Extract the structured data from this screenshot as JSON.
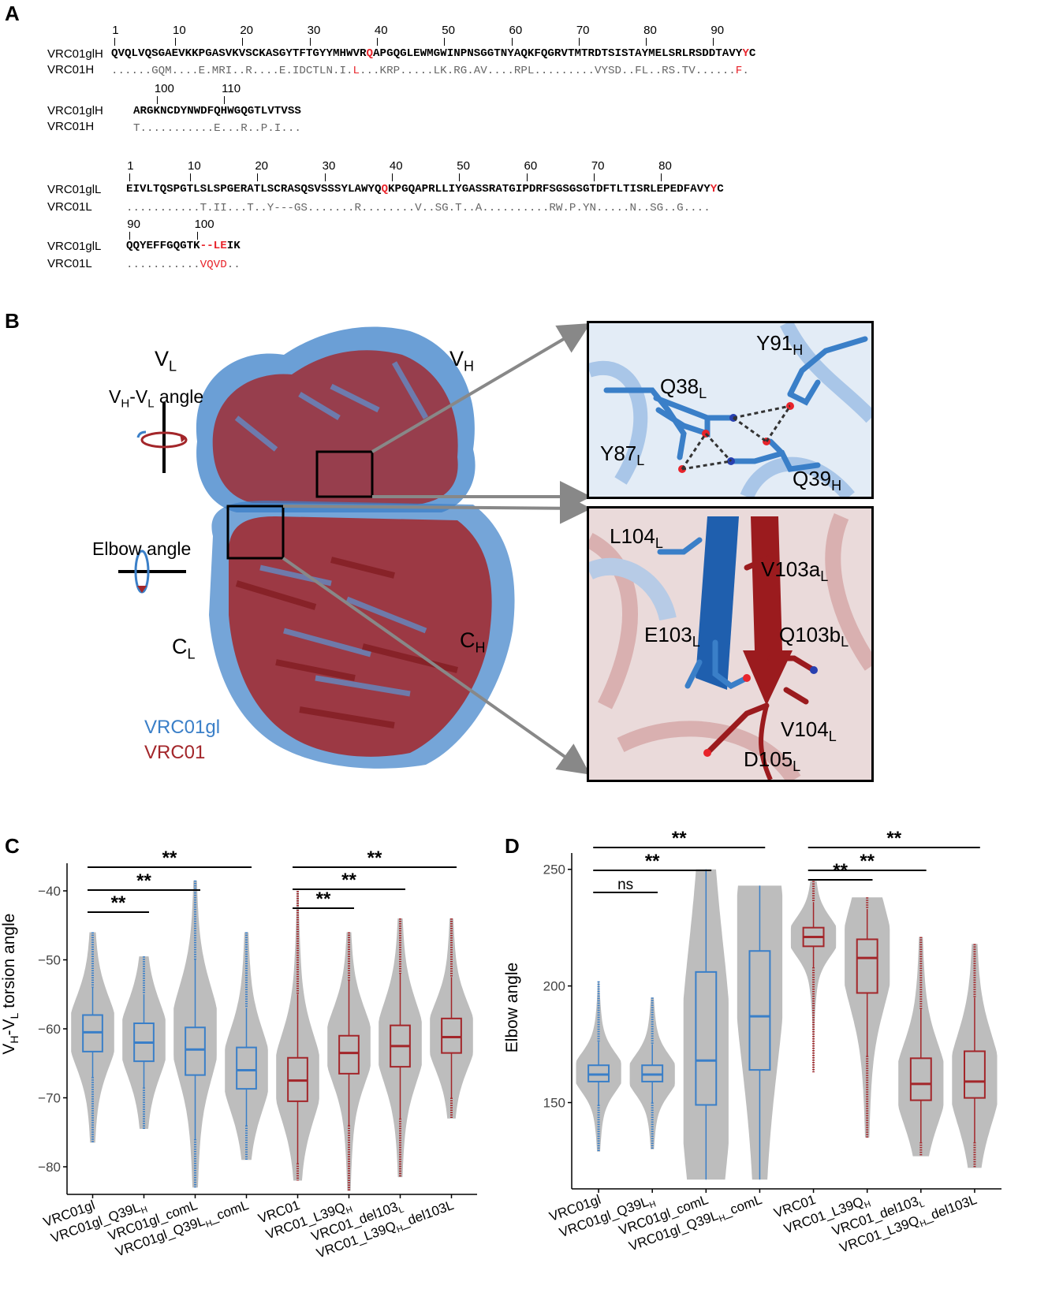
{
  "panel_a": {
    "letter": "A",
    "block1": {
      "ticks": [
        "1",
        "10",
        "20",
        "30",
        "40",
        "50",
        "60",
        "70",
        "80",
        "90"
      ],
      "row1_name": "VRC01glH",
      "row1_seq_pre": "QVQLVQSGAEVKKPGASVKVSCKASGYTFTGYYMHWVR",
      "row1_seq_red1": "Q",
      "row1_seq_mid": "APGQGLEWMGWINPNSGGTNYAQKFQGRVTMTRDTSISTAYMELSRLRSDDTAVY",
      "row1_seq_red2": "Y",
      "row1_seq_end": "C",
      "row2_name": "VRC01H",
      "row2_seq_pre": "......GQM....E.MRI..R....E.IDCTLN.I.",
      "row2_seq_red1": "L",
      "row2_seq_mid": "...KRP.....LK.RG.AV....RPL.........VYSD..FL..RS.TV......",
      "row2_seq_red2": "F",
      "row2_seq_end": "."
    },
    "block2": {
      "ticks": [
        "100",
        "110"
      ],
      "row1_name": "VRC01glH",
      "row1_seq": "ARGKNCDYNWDFQHWGQGTLVTVSS",
      "row2_name": "VRC01H",
      "row2_seq": "T...........E...R..P.I..."
    },
    "block3": {
      "ticks": [
        "1",
        "10",
        "20",
        "30",
        "40",
        "50",
        "60",
        "70",
        "80"
      ],
      "row1_name": "VRC01glL",
      "row1_seq_pre": "EIVLTQSPGTLSLSPGERATLSCRASQSVSSSYLAWYQ",
      "row1_seq_red1": "Q",
      "row1_seq_mid": "KPGQAPRLLIYGASSRATGIPDRFSGSGSGTDFTLTISRLEPEDFAVY",
      "row1_seq_red2": "Y",
      "row1_seq_end": "C",
      "row2_name": "VRC01L",
      "row2_seq": "...........T.II...T..Y---GS.......R........V..SG.T..A..........RW.P.YN.....N..SG..G...."
    },
    "block4": {
      "ticks": [
        "90",
        "100"
      ],
      "row1_name": "VRC01glL",
      "row1_seq_pre": "QQYEFFGQGTK",
      "row1_seq_red": "--LE",
      "row1_seq_end": "IK",
      "row2_name": "VRC01L",
      "row2_seq_pre": "...........",
      "row2_seq_red": "VQVD",
      "row2_seq_end": ".."
    }
  },
  "panel_b": {
    "letter": "B",
    "labels": {
      "vl": "V",
      "vl_sub": "L",
      "vh": "V",
      "vh_sub": "H",
      "angle_title_v1": "V",
      "angle_title_sub1": "H",
      "angle_title_dash": "-V",
      "angle_title_sub2": "L",
      "angle_title_rest": " angle",
      "elbow": "Elbow angle",
      "cl": "C",
      "cl_sub": "L",
      "ch": "C",
      "ch_sub": "H",
      "legend_gl": "VRC01gl",
      "legend_mature": "VRC01"
    },
    "zoom_top": {
      "residues": [
        {
          "name": "Y91",
          "sub": "H"
        },
        {
          "name": "Q38",
          "sub": "L"
        },
        {
          "name": "Y87",
          "sub": "L"
        },
        {
          "name": "Q39",
          "sub": "H"
        }
      ]
    },
    "zoom_bottom": {
      "residues": [
        {
          "name": "L104",
          "sub": "L",
          "color": "#1f5fae"
        },
        {
          "name": "V103a",
          "sub": "L",
          "color": "#9b1b1e"
        },
        {
          "name": "E103",
          "sub": "L",
          "color": "#1f5fae"
        },
        {
          "name": "Q103b",
          "sub": "L",
          "color": "#9b1b1e"
        },
        {
          "name": "V104",
          "sub": "L",
          "color": "#9b1b1e"
        },
        {
          "name": "D105",
          "sub": "L",
          "color": "#9b1b1e"
        }
      ]
    },
    "colors": {
      "gl": "#3a7fc8",
      "mature": "#a3262a"
    }
  },
  "panel_c": {
    "letter": "C",
    "ylabel_main": "V",
    "ylabel_sub1": "H",
    "ylabel_dash": "-V",
    "ylabel_sub2": "L",
    "ylabel_rest": " torsion angle",
    "yticks": [
      "-40",
      "-50",
      "-60",
      "-70",
      "-80"
    ],
    "categories": [
      {
        "main": "VRC01gl",
        "sub": "",
        "after": ""
      },
      {
        "main": "VRC01gl_Q39L",
        "sub": "H",
        "after": ""
      },
      {
        "main": "VRC01gl_comL",
        "sub": "",
        "after": ""
      },
      {
        "main": "VRC01gl_Q39L",
        "sub": "H",
        "after": "_comL"
      },
      {
        "main": "VRC01",
        "sub": "",
        "after": ""
      },
      {
        "main": "VRC01_L39Q",
        "sub": "H",
        "after": ""
      },
      {
        "main": "VRC01_del103",
        "sub": "L",
        "after": ""
      },
      {
        "main": "VRC01_L39Q",
        "sub": "H",
        "after": "_del103L"
      }
    ],
    "sig": [
      "**",
      "**",
      "**",
      "**",
      "**",
      "**"
    ]
  },
  "panel_d": {
    "letter": "D",
    "ylabel": "Elbow angle",
    "yticks": [
      "250",
      "200",
      "150"
    ],
    "categories": [
      {
        "main": "VRC01gl",
        "sub": "",
        "after": ""
      },
      {
        "main": "VRC01gl_Q39L",
        "sub": "H",
        "after": ""
      },
      {
        "main": "VRC01gl_comL",
        "sub": "",
        "after": ""
      },
      {
        "main": "VRC01gl_Q39L",
        "sub": "H",
        "after": "_comL"
      },
      {
        "main": "VRC01",
        "sub": "",
        "after": ""
      },
      {
        "main": "VRC01_L39Q",
        "sub": "H",
        "after": ""
      },
      {
        "main": "VRC01_del103",
        "sub": "L",
        "after": ""
      },
      {
        "main": "VRC01_L39Q",
        "sub": "H",
        "after": "_del103L"
      }
    ],
    "sig": [
      "ns",
      "**",
      "**",
      "**",
      "**",
      "**"
    ]
  },
  "chart_data": [
    {
      "type": "violin",
      "title": "",
      "ylabel": "VH-VL torsion angle",
      "ylim": [
        -84,
        -36
      ],
      "grid": false,
      "series": [
        {
          "category": "VRC01gl",
          "color": "#3a7fc8",
          "median": -60.5,
          "q1": -63.3,
          "q3": -58,
          "whisker_low": -67,
          "whisker_high": -54,
          "min": -76.5,
          "max": -46,
          "density_peak": -60.5
        },
        {
          "category": "VRC01gl_Q39LH",
          "color": "#3a7fc8",
          "median": -62,
          "q1": -64.7,
          "q3": -59.2,
          "whisker_low": -68.5,
          "whisker_high": -55,
          "min": -74.5,
          "max": -49.5,
          "density_peak": -61.5
        },
        {
          "category": "VRC01gl_comL",
          "color": "#3a7fc8",
          "median": -63,
          "q1": -66.7,
          "q3": -59.8,
          "whisker_low": -76,
          "whisker_high": -50,
          "min": -83,
          "max": -38.5,
          "density_peak": -60.5
        },
        {
          "category": "VRC01gl_Q39LH_comL",
          "color": "#3a7fc8",
          "median": -66,
          "q1": -68.7,
          "q3": -62.7,
          "whisker_low": -74,
          "whisker_high": -57,
          "min": -79,
          "max": -46,
          "density_peak": -66
        },
        {
          "category": "VRC01",
          "color": "#a3262a",
          "median": -67.5,
          "q1": -70.5,
          "q3": -64.2,
          "whisker_low": -79.5,
          "whisker_high": -55,
          "min": -82,
          "max": -40,
          "density_peak": -67
        },
        {
          "category": "VRC01_L39QH",
          "color": "#a3262a",
          "median": -63.5,
          "q1": -66.5,
          "q3": -61,
          "whisker_low": -74,
          "whisker_high": -53,
          "min": -83.5,
          "max": -46,
          "density_peak": -62.5
        },
        {
          "category": "VRC01_del103L",
          "color": "#a3262a",
          "median": -62.5,
          "q1": -65.5,
          "q3": -59.5,
          "whisker_low": -73,
          "whisker_high": -52,
          "min": -81.5,
          "max": -44,
          "density_peak": -62
        },
        {
          "category": "VRC01_L39QH_del103L",
          "color": "#a3262a",
          "median": -61.2,
          "q1": -63.5,
          "q3": -58.5,
          "whisker_low": -70,
          "whisker_high": -52.5,
          "min": -73,
          "max": -44,
          "density_peak": -61
        }
      ],
      "significance": [
        {
          "from": 0,
          "to": 1,
          "label": "**"
        },
        {
          "from": 0,
          "to": 2,
          "label": "**"
        },
        {
          "from": 0,
          "to": 3,
          "label": "**"
        },
        {
          "from": 4,
          "to": 5,
          "label": "**"
        },
        {
          "from": 4,
          "to": 6,
          "label": "**"
        },
        {
          "from": 4,
          "to": 7,
          "label": "**"
        }
      ]
    },
    {
      "type": "violin",
      "title": "",
      "ylabel": "Elbow angle",
      "ylim": [
        113,
        257
      ],
      "grid": false,
      "series": [
        {
          "category": "VRC01gl",
          "color": "#3a7fc8",
          "median": 162,
          "q1": 159,
          "q3": 166,
          "whisker_low": 149,
          "whisker_high": 176,
          "min": 129,
          "max": 202,
          "density_peak": 163
        },
        {
          "category": "VRC01gl_Q39LH",
          "color": "#3a7fc8",
          "median": 162,
          "q1": 159,
          "q3": 166,
          "whisker_low": 150,
          "whisker_high": 175,
          "min": 130,
          "max": 195,
          "density_peak": 162
        },
        {
          "category": "VRC01gl_comL",
          "color": "#3a7fc8",
          "median": 168,
          "q1": 149,
          "q3": 206,
          "whisker_low": 117,
          "whisker_high": 250,
          "min": 117,
          "max": 250,
          "density_peak": 163
        },
        {
          "category": "VRC01gl_Q39LH_comL",
          "color": "#3a7fc8",
          "median": 187,
          "q1": 164,
          "q3": 215,
          "whisker_low": 117,
          "whisker_high": 243,
          "min": 117,
          "max": 243,
          "density_peak": 214
        },
        {
          "category": "VRC01",
          "color": "#a3262a",
          "median": 221,
          "q1": 217,
          "q3": 225,
          "whisker_low": 208,
          "whisker_high": 236,
          "min": 163,
          "max": 245,
          "density_peak": 221
        },
        {
          "category": "VRC01_L39QH",
          "color": "#a3262a",
          "median": 212,
          "q1": 197,
          "q3": 220,
          "whisker_low": 170,
          "whisker_high": 233,
          "min": 135,
          "max": 238,
          "density_peak": 213
        },
        {
          "category": "VRC01_del103L",
          "color": "#a3262a",
          "median": 158,
          "q1": 151,
          "q3": 169,
          "whisker_low": 133,
          "whisker_high": 190,
          "min": 127,
          "max": 221,
          "density_peak": 158
        },
        {
          "category": "VRC01_L39QH_del103L",
          "color": "#a3262a",
          "median": 159,
          "q1": 152,
          "q3": 172,
          "whisker_low": 133,
          "whisker_high": 195,
          "min": 122,
          "max": 218,
          "density_peak": 160
        }
      ],
      "significance": [
        {
          "from": 0,
          "to": 1,
          "label": "ns"
        },
        {
          "from": 0,
          "to": 2,
          "label": "**"
        },
        {
          "from": 0,
          "to": 3,
          "label": "**"
        },
        {
          "from": 4,
          "to": 5,
          "label": "**"
        },
        {
          "from": 4,
          "to": 6,
          "label": "**"
        },
        {
          "from": 4,
          "to": 7,
          "label": "**"
        }
      ]
    }
  ]
}
